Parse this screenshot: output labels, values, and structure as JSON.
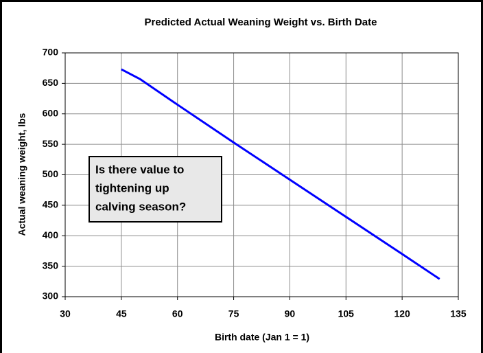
{
  "chart_data": {
    "type": "line",
    "title": "Predicted Actual Weaning Weight vs. Birth Date",
    "x_label": "Birth date (Jan 1 = 1)",
    "y_label": "Actual weaning weight, lbs",
    "annotation": [
      "Is there value to",
      "tightening up",
      "calving season?"
    ],
    "x": [
      45,
      50,
      60,
      75,
      90,
      105,
      120,
      130
    ],
    "series": [
      {
        "color": "#0000ff",
        "values": [
          673,
          657,
          615,
          553,
          492,
          431,
          370,
          329
        ]
      }
    ],
    "xlim": [
      30,
      135
    ],
    "xticks": [
      30,
      45,
      60,
      75,
      90,
      105,
      120,
      135
    ],
    "ylim": [
      300,
      700
    ],
    "yticks": [
      300,
      350,
      400,
      450,
      500,
      550,
      600,
      650,
      700
    ],
    "grid": true
  }
}
